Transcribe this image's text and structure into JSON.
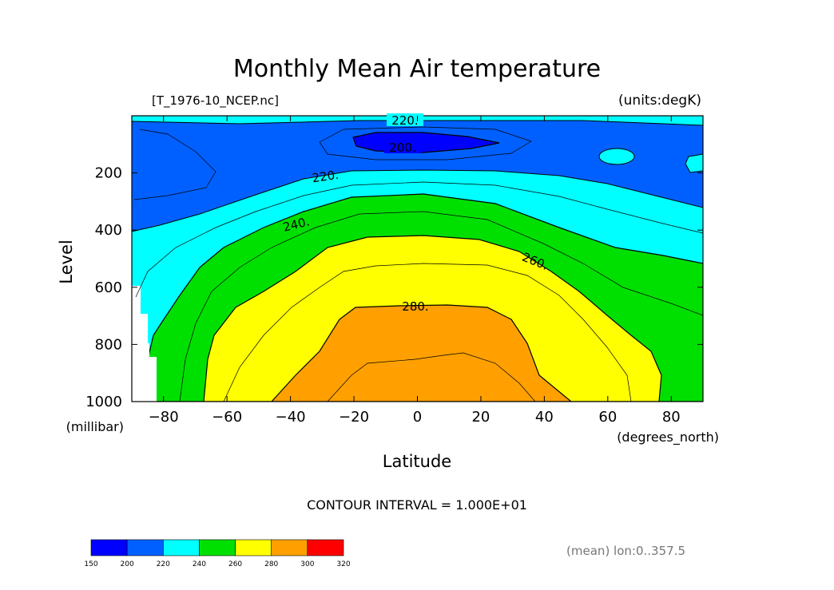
{
  "chart_data": {
    "type": "contour",
    "title": "Monthly Mean Air temperature",
    "file_label": "[T_1976-10_NCEP.nc]",
    "units_label": "(units:degK)",
    "xlabel": "Latitude",
    "xunits": "(degrees_north)",
    "ylabel": "Level",
    "yunits": "(millibar)",
    "xlim": [
      -90,
      90
    ],
    "ylim": [
      0,
      1000
    ],
    "y_inverted": true,
    "x_ticks": [
      -80,
      -60,
      -40,
      -20,
      0,
      20,
      40,
      60,
      80
    ],
    "x_tick_labels": [
      "−80",
      "−60",
      "−40",
      "−20",
      "0",
      "20",
      "40",
      "60",
      "80"
    ],
    "y_ticks": [
      200,
      400,
      600,
      800,
      1000
    ],
    "y_tick_labels": [
      "200",
      "400",
      "600",
      "800",
      "1000"
    ],
    "contour_interval_text": "CONTOUR INTERVAL = 1.000E+01",
    "footer": "(mean) lon:0..357.5",
    "contour_labels": [
      "220.",
      "200.",
      "220.",
      "240.",
      "260.",
      "280."
    ],
    "colorbar": {
      "ticks": [
        150,
        200,
        220,
        240,
        260,
        280,
        300,
        320
      ],
      "tick_labels": [
        "150",
        "200",
        "220",
        "240",
        "260",
        "280",
        "300",
        "320"
      ],
      "colors": [
        "#0000ff",
        "#0060ff",
        "#00ffff",
        "#00e000",
        "#ffff00",
        "#ffa000",
        "#ff0000"
      ]
    }
  }
}
